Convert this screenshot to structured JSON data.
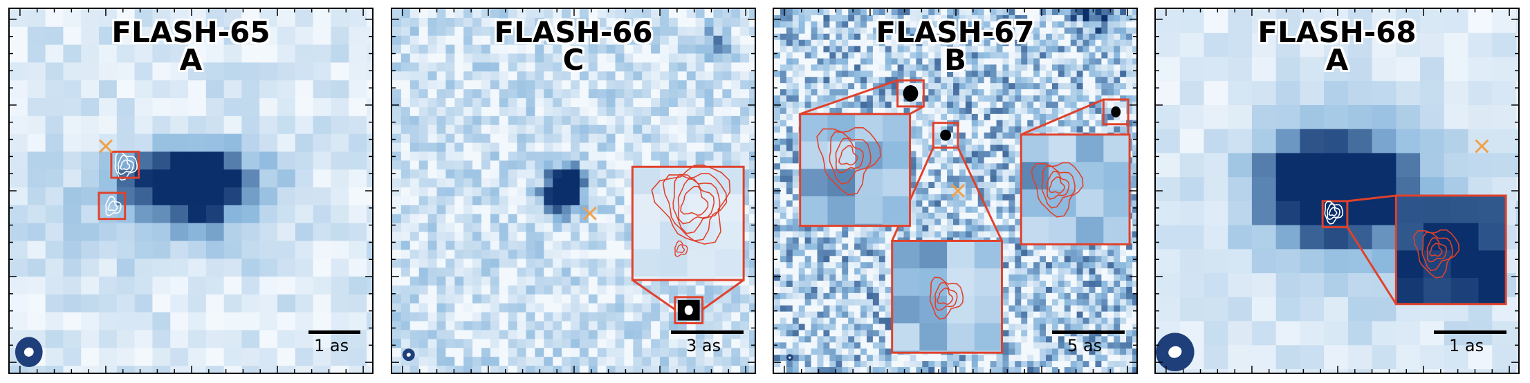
{
  "panels": [
    {
      "name": "FLASH-65",
      "label": "A",
      "scale": "1 as"
    },
    {
      "name": "FLASH-66",
      "label": "C",
      "scale": "3 as"
    },
    {
      "name": "FLASH-67",
      "label": "B",
      "scale": "5 as"
    },
    {
      "name": "FLASH-68",
      "label": "A",
      "scale": "1 as"
    }
  ],
  "colors": {
    "cmap_light": "#f3f8fd",
    "cmap_dark": "#0b2f6b",
    "contour_red": "#e0412b",
    "marker_orange": "#f0a04b",
    "beam": "#1f3f7a"
  }
}
